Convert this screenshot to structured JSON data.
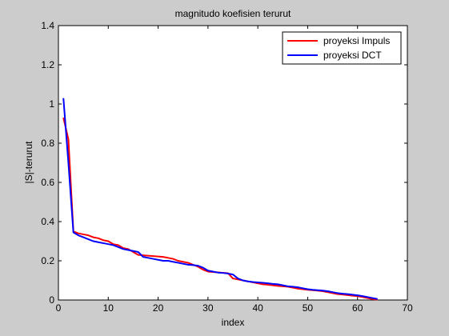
{
  "chart_data": {
    "type": "line",
    "title": "magnitudo koefisien terurut",
    "xlabel": "index",
    "ylabel": "|S|-terurut",
    "xlim": [
      0,
      70
    ],
    "ylim": [
      0,
      1.4
    ],
    "xticks": [
      0,
      10,
      20,
      30,
      40,
      50,
      60,
      70
    ],
    "yticks": [
      0,
      0.2,
      0.4,
      0.6,
      0.8,
      1,
      1.2,
      1.4
    ],
    "ytick_labels": [
      "0",
      "0.2",
      "0.4",
      "0.6",
      "0.8",
      "1",
      "1.2",
      "1.4"
    ],
    "grid": false,
    "legend_position": "top-right",
    "series": [
      {
        "name": "proyeksi Impuls",
        "color": "#ff0000",
        "x": [
          1,
          2,
          3,
          4,
          5,
          6,
          7,
          8,
          9,
          10,
          11,
          12,
          13,
          14,
          15,
          16,
          17,
          18,
          19,
          20,
          21,
          22,
          23,
          24,
          25,
          26,
          27,
          28,
          29,
          30,
          31,
          32,
          33,
          34,
          35,
          36,
          37,
          38,
          39,
          40,
          41,
          42,
          43,
          44,
          45,
          46,
          47,
          48,
          49,
          50,
          51,
          52,
          53,
          54,
          55,
          56,
          57,
          58,
          59,
          60,
          61,
          62,
          63,
          64
        ],
        "y": [
          0.93,
          0.82,
          0.35,
          0.34,
          0.335,
          0.33,
          0.32,
          0.315,
          0.305,
          0.3,
          0.285,
          0.28,
          0.265,
          0.26,
          0.245,
          0.23,
          0.228,
          0.226,
          0.224,
          0.222,
          0.22,
          0.215,
          0.21,
          0.2,
          0.195,
          0.19,
          0.18,
          0.17,
          0.155,
          0.145,
          0.143,
          0.141,
          0.139,
          0.137,
          0.11,
          0.105,
          0.1,
          0.095,
          0.09,
          0.085,
          0.08,
          0.078,
          0.075,
          0.072,
          0.07,
          0.068,
          0.063,
          0.058,
          0.055,
          0.052,
          0.05,
          0.048,
          0.045,
          0.04,
          0.035,
          0.03,
          0.028,
          0.025,
          0.022,
          0.02,
          0.015,
          0.01,
          0.005,
          0.002
        ]
      },
      {
        "name": "proyeksi DCT",
        "color": "#0000ff",
        "x": [
          1,
          2,
          3,
          4,
          5,
          6,
          7,
          8,
          9,
          10,
          11,
          12,
          13,
          14,
          15,
          16,
          17,
          18,
          19,
          20,
          21,
          22,
          23,
          24,
          25,
          26,
          27,
          28,
          29,
          30,
          31,
          32,
          33,
          34,
          35,
          36,
          37,
          38,
          39,
          40,
          41,
          42,
          43,
          44,
          45,
          46,
          47,
          48,
          49,
          50,
          51,
          52,
          53,
          54,
          55,
          56,
          57,
          58,
          59,
          60,
          61,
          62,
          63,
          64
        ],
        "y": [
          1.03,
          0.7,
          0.345,
          0.33,
          0.32,
          0.31,
          0.3,
          0.295,
          0.29,
          0.285,
          0.28,
          0.27,
          0.26,
          0.255,
          0.25,
          0.245,
          0.22,
          0.215,
          0.21,
          0.205,
          0.2,
          0.2,
          0.195,
          0.19,
          0.185,
          0.18,
          0.178,
          0.175,
          0.165,
          0.15,
          0.145,
          0.14,
          0.138,
          0.135,
          0.13,
          0.11,
          0.1,
          0.095,
          0.092,
          0.09,
          0.088,
          0.085,
          0.082,
          0.08,
          0.075,
          0.07,
          0.068,
          0.065,
          0.06,
          0.055,
          0.052,
          0.05,
          0.048,
          0.045,
          0.04,
          0.035,
          0.032,
          0.03,
          0.027,
          0.024,
          0.02,
          0.015,
          0.01,
          0.005
        ]
      }
    ]
  }
}
